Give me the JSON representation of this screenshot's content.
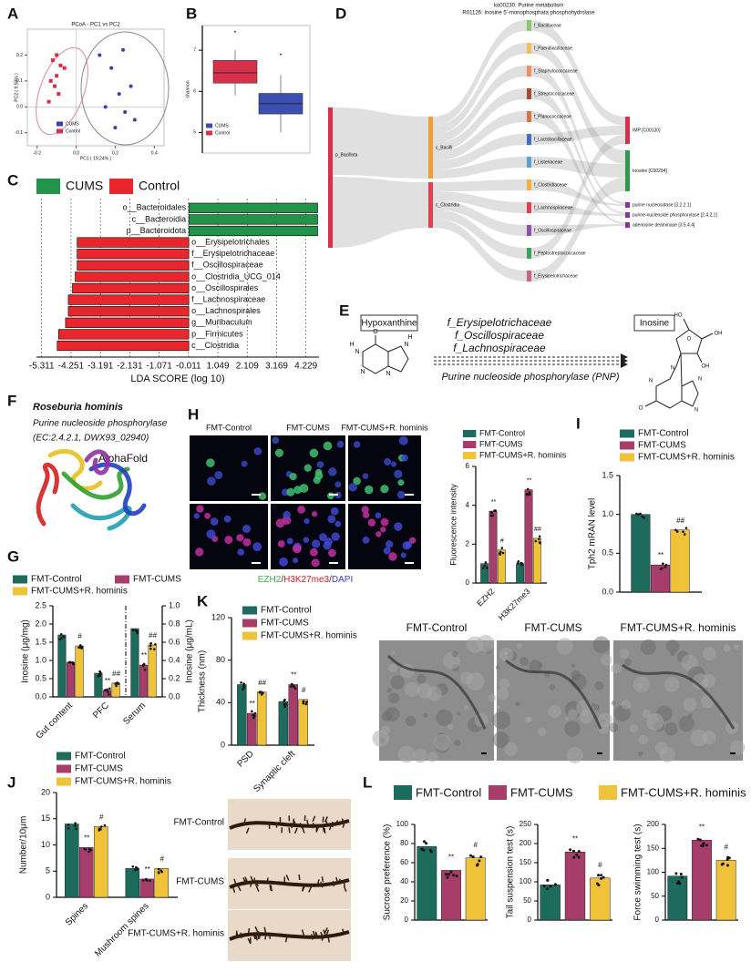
{
  "chart_data": [
    {
      "type": "scatter",
      "panel": "A",
      "title": "PCoA - PC1 vs PC2",
      "xlabel": "PC1 ( 19.24% )",
      "ylabel": "PC2 ( 9.58% )",
      "xlim": [
        -0.25,
        0.45
      ],
      "ylim": [
        -0.15,
        0.3
      ],
      "xticks": [
        -0.2,
        {
          "value": 0,
          "label": "0.0"
        },
        0.2,
        0.4
      ],
      "yticks": [
        -0.1,
        {
          "value": 0,
          "label": "0.0"
        },
        0.1,
        0.2
      ],
      "series": [
        {
          "name": "CUMS",
          "color": "#3a3fb0",
          "x": [
            0.12,
            0.18,
            0.22,
            0.25,
            0.15,
            0.28,
            0.3,
            0.2,
            0.24
          ],
          "y": [
            0.2,
            0.15,
            0.05,
            -0.02,
            0.0,
            0.08,
            -0.05,
            -0.08,
            0.22
          ]
        },
        {
          "name": "Control",
          "color": "#d8304a",
          "x": [
            -0.12,
            -0.1,
            -0.08,
            -0.13,
            -0.11,
            -0.09,
            -0.14,
            -0.1,
            -0.06
          ],
          "y": [
            0.18,
            0.2,
            0.16,
            0.1,
            0.08,
            0.05,
            0.02,
            0.12,
            0.15
          ]
        }
      ]
    },
    {
      "type": "box",
      "panel": "B",
      "ylabel": "shannon",
      "ylim": [
        4.5,
        7.6
      ],
      "yticks": [
        5,
        6,
        7
      ],
      "series": [
        {
          "name": "Control",
          "color": "#d8304a",
          "min": 5.9,
          "q1": 6.2,
          "median": 6.45,
          "q3": 6.75,
          "max": 7.0,
          "outliers": [
            7.45
          ]
        },
        {
          "name": "CUMS",
          "color": "#3a4fb0",
          "min": 5.0,
          "q1": 5.45,
          "median": 5.7,
          "q3": 5.95,
          "max": 6.4,
          "outliers": [
            6.9
          ]
        }
      ]
    },
    {
      "type": "hbar",
      "panel": "C",
      "xlabel": "LDA SCORE (log 10)",
      "xlim": [
        -5.5,
        4.7
      ],
      "xticks": [
        -5.311,
        -4.251,
        -3.191,
        -2.131,
        -1.071,
        -0.011,
        1.049,
        2.109,
        3.169,
        4.229
      ],
      "categories": [
        "o__Bacteroidales",
        "c__Bacteroidia",
        "p__Bacteroidota",
        "o__Erysipelotrichales",
        "f__Erysipelotrichaceae",
        "f__Oscillospiraceae",
        "o__Clostridia_UCG_014",
        "o__Oscillospirales",
        "f__Lachnospiraceae",
        "o__Lachnospirales",
        "g__Muribaculum",
        "p__Firmicutes",
        "c__Clostridia"
      ],
      "series": [
        {
          "name": "CUMS",
          "color": "#24934a",
          "values": [
            4.65,
            4.65,
            4.65,
            null,
            null,
            null,
            null,
            null,
            null,
            null,
            null,
            null,
            null
          ]
        },
        {
          "name": "Control",
          "color": "#e8262c",
          "values": [
            null,
            null,
            null,
            -4.03,
            -4.03,
            -4.03,
            -4.1,
            -4.2,
            -4.35,
            -4.35,
            -4.45,
            -4.7,
            -4.75
          ]
        }
      ]
    },
    {
      "type": "bar",
      "panel": "G",
      "ylabel": "Inosine (μg/mg)",
      "y2label": "Inosine (μg/mL)",
      "ylim": [
        0,
        2.5
      ],
      "yticks": [
        {
          "value": 0,
          "label": "0.0"
        },
        {
          "value": 0.5,
          "label": "0.5"
        },
        {
          "value": 1,
          "label": "1.0"
        },
        {
          "value": 1.5,
          "label": "1.5"
        },
        {
          "value": 2,
          "label": "2.0"
        },
        {
          "value": 2.5,
          "label": "2.5"
        }
      ],
      "y2lim": [
        0,
        1
      ],
      "y2ticks": [
        {
          "value": 0,
          "label": "0.0"
        },
        0.2,
        0.4,
        0.6,
        0.8,
        {
          "value": 1,
          "label": "1.0"
        }
      ],
      "categories": [
        "Gut content",
        "PFC",
        "Serum"
      ],
      "category_axis": [
        "y",
        "y",
        "y2"
      ],
      "series": [
        {
          "name": "FMT-Control",
          "color": "#1d6b5c",
          "values": [
            1.7,
            0.65,
            0.75
          ]
        },
        {
          "name": "FMT-CUMS",
          "color": "#a63d6a",
          "values": [
            0.95,
            0.18,
            0.35
          ],
          "sig_labels": [
            null,
            "**",
            "**"
          ]
        },
        {
          "name": "FMT-CUMS+R. hominis",
          "color": "#f0c23a",
          "values": [
            1.4,
            0.38,
            0.57
          ],
          "sig_labels": [
            "#",
            "##",
            "##"
          ]
        }
      ]
    },
    {
      "type": "bar",
      "panel": "H",
      "ylabel": "Fluorescence intensity",
      "ylim": [
        0,
        6
      ],
      "yticks": [
        0,
        2,
        4,
        6
      ],
      "categories": [
        "EZH2",
        "H3K27me3"
      ],
      "image_labels": [
        "FMT-Control",
        "FMT-CUMS",
        "FMT-CUMS+R. hominis"
      ],
      "stain_caption": [
        {
          "text": "EZH2",
          "color": "#3cb043"
        },
        {
          "text": "/",
          "color": "#333333"
        },
        {
          "text": "H3K27me3",
          "color": "#d02020"
        },
        {
          "text": "/",
          "color": "#333333"
        },
        {
          "text": "DAPI",
          "color": "#3a40c0"
        }
      ],
      "series": [
        {
          "name": "FMT-Control",
          "color": "#1d6b5c",
          "values": [
            1.0,
            1.0
          ]
        },
        {
          "name": "FMT-CUMS",
          "color": "#a63d6a",
          "values": [
            3.7,
            4.8
          ],
          "sig_labels": [
            "**",
            "**"
          ]
        },
        {
          "name": "FMT-CUMS+R. hominis",
          "color": "#f0c23a",
          "values": [
            1.7,
            2.3
          ],
          "sig_labels": [
            "#",
            "##"
          ]
        }
      ]
    },
    {
      "type": "bar",
      "panel": "I",
      "ylabel": "Tph2 mRAN level",
      "ylim": [
        0,
        1.5
      ],
      "yticks": [
        {
          "value": 0,
          "label": "0.0"
        },
        {
          "value": 0.5,
          "label": "0.5"
        },
        {
          "value": 1,
          "label": "1.0"
        },
        {
          "value": 1.5,
          "label": "1.5"
        }
      ],
      "series": [
        {
          "name": "FMT-Control",
          "color": "#1d6b5c",
          "values": [
            1.0
          ]
        },
        {
          "name": "FMT-CUMS",
          "color": "#a63d6a",
          "values": [
            0.35
          ],
          "sig_labels": [
            "**"
          ]
        },
        {
          "name": "FMT-CUMS+R. hominis",
          "color": "#f0c23a",
          "values": [
            0.8
          ],
          "sig_labels": [
            "##"
          ]
        }
      ]
    },
    {
      "type": "bar",
      "panel": "K",
      "ylabel": "Thickness (nm)",
      "ylim": [
        0,
        120
      ],
      "yticks": [
        0,
        40,
        80,
        120
      ],
      "categories": [
        "PSD",
        "Synaptic cleft"
      ],
      "image_labels": [
        "FMT-Control",
        "FMT-CUMS",
        "FMT-CUMS+R. hominis"
      ],
      "series": [
        {
          "name": "FMT-Control",
          "color": "#1d6b5c",
          "values": [
            57,
            41
          ]
        },
        {
          "name": "FMT-CUMS",
          "color": "#a63d6a",
          "values": [
            30,
            57
          ],
          "sig_labels": [
            "**",
            "**"
          ]
        },
        {
          "name": "FMT-CUMS+R. hominis",
          "color": "#f0c23a",
          "values": [
            50,
            43
          ],
          "sig_labels": [
            "##",
            "#"
          ]
        }
      ]
    },
    {
      "type": "bar",
      "panel": "J",
      "ylabel": "Number/10μm",
      "ylim": [
        0,
        20
      ],
      "yticks": [
        0,
        5,
        10,
        15,
        20
      ],
      "categories": [
        "Spines",
        "Mushroom spines"
      ],
      "image_labels": [
        "FMT-Control",
        "FMT-CUMS",
        "FMT-CUMS+R. hominis"
      ],
      "series": [
        {
          "name": "FMT-Control",
          "color": "#1d6b5c",
          "values": [
            14,
            5.5
          ]
        },
        {
          "name": "FMT-CUMS",
          "color": "#a63d6a",
          "values": [
            9.5,
            3.5
          ],
          "sig_labels": [
            "**",
            "**"
          ]
        },
        {
          "name": "FMT-CUMS+R. hominis",
          "color": "#f0c23a",
          "values": [
            13.5,
            5.5
          ],
          "sig_labels": [
            "#",
            "#"
          ]
        }
      ]
    },
    {
      "type": "bar-multi",
      "panel": "L",
      "series": [
        {
          "name": "FMT-Control",
          "color": "#1d6b5c"
        },
        {
          "name": "FMT-CUMS",
          "color": "#a63d6a"
        },
        {
          "name": "FMT-CUMS+R. hominis",
          "color": "#f0c23a"
        }
      ],
      "subplots": [
        {
          "ylabel": "Sucrose preference (%)",
          "ylim": [
            0,
            100
          ],
          "yticks": [
            0,
            20,
            40,
            60,
            80,
            100
          ],
          "values": [
            77,
            52,
            65
          ],
          "sig_labels": [
            null,
            "**",
            "#"
          ]
        },
        {
          "ylabel": "Tail suspension test (s)",
          "ylim": [
            0,
            250
          ],
          "yticks": [
            0,
            50,
            100,
            150,
            200,
            250
          ],
          "values": [
            92,
            178,
            110
          ],
          "sig_labels": [
            null,
            "**",
            "#"
          ]
        },
        {
          "ylabel": "Force swimming test (s)",
          "ylim": [
            0,
            200
          ],
          "yticks": [
            0,
            50,
            100,
            150,
            200
          ],
          "values": [
            92,
            167,
            125
          ],
          "sig_labels": [
            null,
            "**",
            "#"
          ]
        }
      ]
    }
  ],
  "sankey": {
    "panel": "D",
    "title": "ko00230: Purine metabolism",
    "subtitle": "R01126: Inosine 5'-monophosphata phosphohydrolase",
    "left_nodes": [
      {
        "label": "p_Bacillota",
        "color": "#d8304a"
      }
    ],
    "middle_nodes": [
      {
        "label": "c_Bacilli",
        "color": "#f0a030"
      },
      {
        "label": "c_Clostridia",
        "color": "#e04050"
      }
    ],
    "family_nodes": [
      {
        "label": "f_Bacillaceae",
        "color": "#8cc870"
      },
      {
        "label": "f_Paenibacillaceae",
        "color": "#f0c060"
      },
      {
        "label": "f_Staphylococcaceae",
        "color": "#f09060"
      },
      {
        "label": "f_Streptococcaceae",
        "color": "#a05030"
      },
      {
        "label": "f_Planococcaceae",
        "color": "#e07040"
      },
      {
        "label": "f_Lactobacillaceae",
        "color": "#4070c0"
      },
      {
        "label": "f_Listeriaceae",
        "color": "#60a0d0"
      },
      {
        "label": "f_Clostridiaceae",
        "color": "#f0b040"
      },
      {
        "label": "f_Lachnospiraceae",
        "color": "#e04050"
      },
      {
        "label": "f_Oscillospiraceae",
        "color": "#9050b0"
      },
      {
        "label": "f_Peptostreptococcaceae",
        "color": "#40a060"
      },
      {
        "label": "f_Erysipelotrichaceae",
        "color": "#d06090"
      }
    ],
    "right_nodes": [
      {
        "label": "IMP [C00130]",
        "color": "#d8304a"
      },
      {
        "label": "Inosine [C00294]",
        "color": "#2e9a4a"
      },
      {
        "label": "purine nucleosidase [3.2.2.1]",
        "color": "#8b2fa0"
      },
      {
        "label": "purine-nucleoside phosphorylase [2.4.2.1]",
        "color": "#8b2fa0"
      },
      {
        "label": "adenosine deaminase [3.5.4.4]",
        "color": "#8b2fa0"
      }
    ]
  },
  "pathway": {
    "panel": "E",
    "substrate": "Hypoxanthine",
    "product": "Inosine",
    "taxa": [
      {
        "label": "f_Erysipelotrichaceae",
        "color": "#e0302a"
      },
      {
        "label": "f_Oscillospiraceae",
        "color": "#2a7fc0"
      },
      {
        "label": "f_Lachnospiraceae",
        "color": "#2a9a40"
      }
    ],
    "enzyme": "Purine nucleoside phosphorylase (PNP)",
    "substrate_atoms": [
      "O",
      "N",
      "H",
      "N",
      "N",
      "N",
      "H"
    ],
    "product_atoms": [
      "HO",
      "O",
      "OH",
      "OH",
      "O",
      "N",
      "N",
      "N",
      "N"
    ]
  },
  "protein": {
    "panel": "F",
    "organism": "Roseburia hominis",
    "enzyme": "Purine nucleoside phosphorylase",
    "ids": "(EC:2.4.2.1, DWX93_02940)",
    "model": "AlphaFold"
  }
}
